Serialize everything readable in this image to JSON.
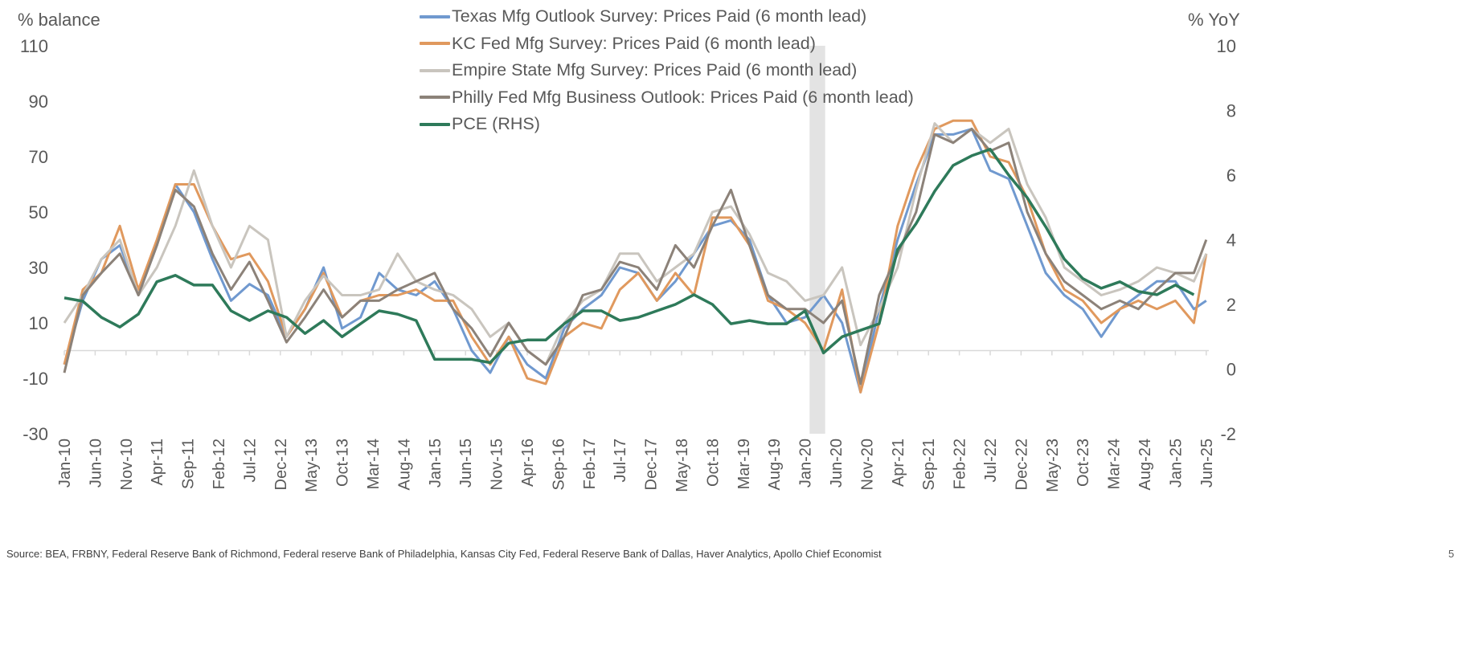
{
  "chart_data": {
    "type": "line",
    "left_axis": {
      "label": "% balance",
      "ylim": [
        -30,
        110
      ],
      "ticks": [
        110,
        90,
        70,
        50,
        30,
        10,
        -10,
        -30
      ]
    },
    "right_axis": {
      "label": "% YoY",
      "ylim": [
        -2,
        10
      ],
      "ticks": [
        10,
        8,
        6,
        4,
        2,
        0,
        -2
      ]
    },
    "x_tick_labels": [
      "Jan-10",
      "Jun-10",
      "Nov-10",
      "Apr-11",
      "Sep-11",
      "Feb-12",
      "Jul-12",
      "Dec-12",
      "May-13",
      "Oct-13",
      "Mar-14",
      "Aug-14",
      "Jan-15",
      "Jun-15",
      "Nov-15",
      "Apr-16",
      "Sep-16",
      "Feb-17",
      "Jul-17",
      "Dec-17",
      "May-18",
      "Oct-18",
      "Mar-19",
      "Aug-19",
      "Jan-20",
      "Jun-20",
      "Nov-20",
      "Apr-21",
      "Sep-21",
      "Feb-22",
      "Jul-22",
      "Dec-22",
      "May-23",
      "Oct-23",
      "Mar-24",
      "Aug-24",
      "Jan-25",
      "Jun-25"
    ],
    "shaded_period": [
      "Feb-20",
      "Apr-20"
    ],
    "legend_placement": "top-center",
    "dates": [
      "Jan-10",
      "Apr-10",
      "Jul-10",
      "Oct-10",
      "Jan-11",
      "Apr-11",
      "Jul-11",
      "Oct-11",
      "Jan-12",
      "Apr-12",
      "Jul-12",
      "Oct-12",
      "Jan-13",
      "Apr-13",
      "Jul-13",
      "Oct-13",
      "Jan-14",
      "Apr-14",
      "Jul-14",
      "Oct-14",
      "Jan-15",
      "Apr-15",
      "Jul-15",
      "Oct-15",
      "Jan-16",
      "Apr-16",
      "Jul-16",
      "Oct-16",
      "Jan-17",
      "Apr-17",
      "Jul-17",
      "Oct-17",
      "Jan-18",
      "Apr-18",
      "Jul-18",
      "Oct-18",
      "Jan-19",
      "Apr-19",
      "Jul-19",
      "Oct-19",
      "Jan-20",
      "Apr-20",
      "Jul-20",
      "Oct-20",
      "Jan-21",
      "Apr-21",
      "Jul-21",
      "Oct-21",
      "Jan-22",
      "Apr-22",
      "Jul-22",
      "Oct-22",
      "Jan-23",
      "Apr-23",
      "Jul-23",
      "Oct-23",
      "Jan-24",
      "Apr-24",
      "Jul-24",
      "Oct-24",
      "Jan-25",
      "Apr-25",
      "Jun-25"
    ],
    "series": [
      {
        "name": "Texas Mfg Outlook Survey: Prices Paid (6 month lead)",
        "axis": "left",
        "color": "#7099CF",
        "values": [
          -5,
          18,
          33,
          38,
          20,
          38,
          60,
          50,
          33,
          18,
          24,
          20,
          5,
          15,
          30,
          8,
          12,
          28,
          22,
          20,
          25,
          15,
          0,
          -8,
          5,
          -5,
          -10,
          8,
          15,
          20,
          30,
          28,
          18,
          25,
          35,
          45,
          47,
          40,
          20,
          10,
          12,
          20,
          10,
          -15,
          15,
          40,
          60,
          78,
          78,
          80,
          65,
          62,
          45,
          28,
          20,
          15,
          5,
          15,
          20,
          25,
          25,
          15,
          18
        ]
      },
      {
        "name": "KC Fed Mfg Survey: Prices Paid (6 month lead)",
        "axis": "left",
        "color": "#E0995E",
        "values": [
          -5,
          22,
          28,
          45,
          22,
          40,
          60,
          60,
          45,
          33,
          35,
          25,
          5,
          15,
          28,
          12,
          18,
          20,
          20,
          22,
          18,
          18,
          5,
          -5,
          5,
          -10,
          -12,
          5,
          10,
          8,
          22,
          28,
          18,
          28,
          20,
          48,
          48,
          38,
          18,
          15,
          10,
          0,
          22,
          -15,
          10,
          45,
          65,
          80,
          83,
          83,
          70,
          68,
          55,
          35,
          22,
          18,
          10,
          15,
          18,
          15,
          18,
          10,
          35
        ]
      },
      {
        "name": "Empire State Mfg Survey: Prices Paid (6 month lead)",
        "axis": "left",
        "color": "#C9C5BE",
        "values": [
          10,
          20,
          33,
          40,
          20,
          30,
          45,
          65,
          45,
          30,
          45,
          40,
          5,
          18,
          27,
          20,
          20,
          22,
          35,
          25,
          22,
          20,
          15,
          5,
          10,
          0,
          -5,
          10,
          18,
          22,
          35,
          35,
          25,
          30,
          35,
          50,
          52,
          42,
          28,
          25,
          18,
          20,
          30,
          2,
          15,
          30,
          58,
          82,
          75,
          80,
          75,
          80,
          60,
          48,
          30,
          25,
          20,
          22,
          25,
          30,
          28,
          25,
          35
        ]
      },
      {
        "name": "Philly Fed Mfg Business Outlook: Prices Paid (6 month lead)",
        "axis": "left",
        "color": "#8C8279",
        "values": [
          -8,
          20,
          28,
          35,
          20,
          38,
          58,
          52,
          35,
          22,
          32,
          18,
          3,
          12,
          22,
          12,
          18,
          18,
          22,
          25,
          28,
          15,
          8,
          -2,
          10,
          0,
          -5,
          5,
          20,
          22,
          32,
          30,
          22,
          38,
          30,
          45,
          58,
          38,
          20,
          15,
          15,
          10,
          18,
          -12,
          20,
          35,
          50,
          78,
          75,
          80,
          72,
          75,
          50,
          35,
          25,
          20,
          15,
          18,
          15,
          22,
          28,
          28,
          40
        ]
      },
      {
        "name": "PCE (RHS)",
        "axis": "right",
        "color": "#2E7A5A",
        "values": [
          2.2,
          2.1,
          1.6,
          1.3,
          1.7,
          2.7,
          2.9,
          2.6,
          2.6,
          1.8,
          1.5,
          1.8,
          1.6,
          1.1,
          1.5,
          1.0,
          1.4,
          1.8,
          1.7,
          1.5,
          0.3,
          0.3,
          0.3,
          0.2,
          0.8,
          0.9,
          0.9,
          1.4,
          1.8,
          1.8,
          1.5,
          1.6,
          1.8,
          2.0,
          2.3,
          2.0,
          1.4,
          1.5,
          1.4,
          1.4,
          1.8,
          0.5,
          1.0,
          1.2,
          1.4,
          3.7,
          4.5,
          5.5,
          6.3,
          6.6,
          6.8,
          6.0,
          5.3,
          4.4,
          3.4,
          2.8,
          2.5,
          2.7,
          2.4,
          2.3,
          2.6,
          2.3,
          null
        ]
      }
    ]
  },
  "footer": {
    "source": "Source: BEA, FRBNY, Federal Reserve Bank of Richmond, Federal reserve Bank of Philadelphia, Kansas City Fed, Federal Reserve Bank of Dallas, Haver Analytics, Apollo Chief Economist",
    "page_number": "5"
  }
}
